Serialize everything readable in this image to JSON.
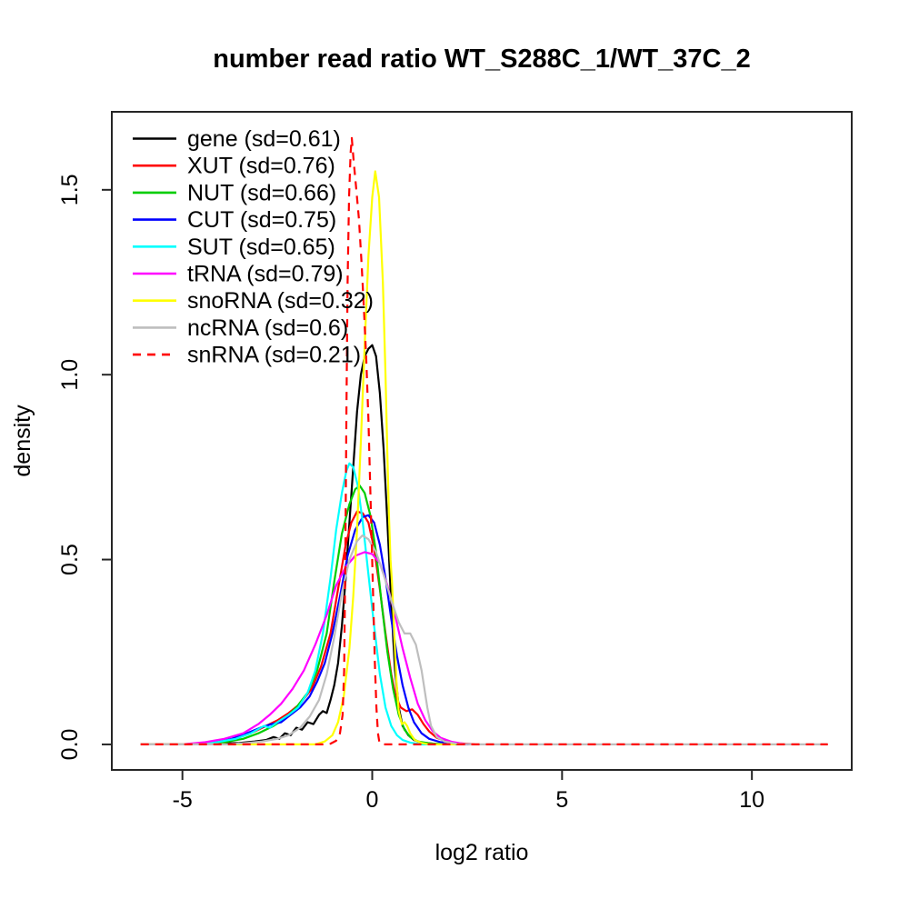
{
  "chart_data": {
    "type": "line",
    "title": "number read ratio WT_S288C_1/WT_37C_2",
    "xlabel": "log2 ratio",
    "ylabel": "density",
    "xlim": [
      -6.86,
      12.63
    ],
    "ylim": [
      -0.069,
      1.711
    ],
    "grid": false,
    "legend_position": "top-left",
    "axis_color": "#262626",
    "xticks": {
      "values": [
        -5,
        0,
        5,
        10
      ],
      "labels": [
        "-5",
        "0",
        "5",
        "10"
      ]
    },
    "yticks": {
      "values": [
        0,
        0.5,
        1,
        1.5
      ],
      "labels": [
        "0.0",
        "0.5",
        "1.0",
        "1.5"
      ]
    },
    "series": [
      {
        "name": "gene",
        "label": "gene (sd=0.61)",
        "sd": 0.61,
        "color": "#000000",
        "dashed": false,
        "points": [
          [
            -6.1,
            0
          ],
          [
            -4.6,
            0
          ],
          [
            -4.0,
            0.002
          ],
          [
            -3.5,
            0.004
          ],
          [
            -3.1,
            0.008
          ],
          [
            -2.8,
            0.012
          ],
          [
            -2.6,
            0.02
          ],
          [
            -2.45,
            0.015
          ],
          [
            -2.3,
            0.03
          ],
          [
            -2.15,
            0.025
          ],
          [
            -2.0,
            0.045
          ],
          [
            -1.85,
            0.04
          ],
          [
            -1.7,
            0.06
          ],
          [
            -1.55,
            0.055
          ],
          [
            -1.4,
            0.08
          ],
          [
            -1.3,
            0.09
          ],
          [
            -1.2,
            0.085
          ],
          [
            -1.1,
            0.12
          ],
          [
            -1.0,
            0.16
          ],
          [
            -0.9,
            0.22
          ],
          [
            -0.8,
            0.32
          ],
          [
            -0.7,
            0.45
          ],
          [
            -0.6,
            0.6
          ],
          [
            -0.5,
            0.75
          ],
          [
            -0.4,
            0.9
          ],
          [
            -0.3,
            1.0
          ],
          [
            -0.2,
            1.05
          ],
          [
            -0.1,
            1.07
          ],
          [
            0.0,
            1.08
          ],
          [
            0.1,
            1.05
          ],
          [
            0.2,
            0.95
          ],
          [
            0.3,
            0.8
          ],
          [
            0.4,
            0.6
          ],
          [
            0.5,
            0.38
          ],
          [
            0.6,
            0.2
          ],
          [
            0.7,
            0.1
          ],
          [
            0.8,
            0.05
          ],
          [
            0.95,
            0.025
          ],
          [
            1.1,
            0.012
          ],
          [
            1.3,
            0.005
          ],
          [
            1.6,
            0.002
          ],
          [
            2.0,
            0
          ],
          [
            2.6,
            0
          ]
        ]
      },
      {
        "name": "XUT",
        "label": "XUT (sd=0.76)",
        "sd": 0.76,
        "color": "#FF0000",
        "dashed": false,
        "points": [
          [
            -6.1,
            0
          ],
          [
            -5.0,
            0
          ],
          [
            -4.4,
            0.004
          ],
          [
            -3.9,
            0.01
          ],
          [
            -3.5,
            0.02
          ],
          [
            -3.1,
            0.035
          ],
          [
            -2.8,
            0.05
          ],
          [
            -2.5,
            0.065
          ],
          [
            -2.2,
            0.085
          ],
          [
            -1.9,
            0.11
          ],
          [
            -1.6,
            0.15
          ],
          [
            -1.35,
            0.21
          ],
          [
            -1.1,
            0.3
          ],
          [
            -0.9,
            0.42
          ],
          [
            -0.7,
            0.54
          ],
          [
            -0.55,
            0.6
          ],
          [
            -0.4,
            0.63
          ],
          [
            -0.25,
            0.625
          ],
          [
            -0.1,
            0.6
          ],
          [
            0.05,
            0.53
          ],
          [
            0.2,
            0.42
          ],
          [
            0.35,
            0.3
          ],
          [
            0.5,
            0.19
          ],
          [
            0.62,
            0.13
          ],
          [
            0.75,
            0.1
          ],
          [
            0.9,
            0.09
          ],
          [
            1.05,
            0.095
          ],
          [
            1.2,
            0.08
          ],
          [
            1.35,
            0.055
          ],
          [
            1.5,
            0.035
          ],
          [
            1.7,
            0.018
          ],
          [
            1.95,
            0.008
          ],
          [
            2.3,
            0.003
          ],
          [
            2.7,
            0
          ]
        ]
      },
      {
        "name": "NUT",
        "label": "NUT (sd=0.66)",
        "sd": 0.66,
        "color": "#00CD00",
        "dashed": false,
        "points": [
          [
            -6.1,
            0
          ],
          [
            -4.4,
            0
          ],
          [
            -3.9,
            0.006
          ],
          [
            -3.4,
            0.015
          ],
          [
            -3.0,
            0.03
          ],
          [
            -2.6,
            0.05
          ],
          [
            -2.3,
            0.07
          ],
          [
            -2.0,
            0.1
          ],
          [
            -1.7,
            0.14
          ],
          [
            -1.45,
            0.2
          ],
          [
            -1.2,
            0.3
          ],
          [
            -1.0,
            0.44
          ],
          [
            -0.8,
            0.57
          ],
          [
            -0.6,
            0.65
          ],
          [
            -0.45,
            0.69
          ],
          [
            -0.33,
            0.7
          ],
          [
            -0.2,
            0.68
          ],
          [
            -0.05,
            0.62
          ],
          [
            0.1,
            0.52
          ],
          [
            0.25,
            0.38
          ],
          [
            0.4,
            0.25
          ],
          [
            0.55,
            0.15
          ],
          [
            0.7,
            0.08
          ],
          [
            0.85,
            0.04
          ],
          [
            1.0,
            0.02
          ],
          [
            1.2,
            0.008
          ],
          [
            1.5,
            0.003
          ],
          [
            1.9,
            0
          ],
          [
            2.4,
            0
          ]
        ]
      },
      {
        "name": "CUT",
        "label": "CUT (sd=0.75)",
        "sd": 0.75,
        "color": "#0000FF",
        "dashed": false,
        "points": [
          [
            -6.1,
            0
          ],
          [
            -4.8,
            0
          ],
          [
            -4.2,
            0.005
          ],
          [
            -3.7,
            0.015
          ],
          [
            -3.3,
            0.03
          ],
          [
            -2.95,
            0.045
          ],
          [
            -2.65,
            0.055
          ],
          [
            -2.4,
            0.06
          ],
          [
            -2.15,
            0.08
          ],
          [
            -1.9,
            0.1
          ],
          [
            -1.65,
            0.13
          ],
          [
            -1.45,
            0.17
          ],
          [
            -1.25,
            0.22
          ],
          [
            -1.05,
            0.3
          ],
          [
            -0.85,
            0.4
          ],
          [
            -0.65,
            0.51
          ],
          [
            -0.45,
            0.58
          ],
          [
            -0.25,
            0.615
          ],
          [
            -0.1,
            0.62
          ],
          [
            0.05,
            0.6
          ],
          [
            0.2,
            0.54
          ],
          [
            0.35,
            0.45
          ],
          [
            0.5,
            0.34
          ],
          [
            0.65,
            0.24
          ],
          [
            0.8,
            0.16
          ],
          [
            0.95,
            0.1
          ],
          [
            1.1,
            0.06
          ],
          [
            1.3,
            0.03
          ],
          [
            1.5,
            0.015
          ],
          [
            1.8,
            0.006
          ],
          [
            2.2,
            0.002
          ],
          [
            2.6,
            0
          ]
        ]
      },
      {
        "name": "SUT",
        "label": "SUT (sd=0.65)",
        "sd": 0.65,
        "color": "#00FFFF",
        "dashed": false,
        "points": [
          [
            -6.1,
            0
          ],
          [
            -4.6,
            0
          ],
          [
            -4.1,
            0.006
          ],
          [
            -3.6,
            0.015
          ],
          [
            -3.2,
            0.03
          ],
          [
            -2.85,
            0.05
          ],
          [
            -2.7,
            0.045
          ],
          [
            -2.5,
            0.06
          ],
          [
            -2.2,
            0.08
          ],
          [
            -1.95,
            0.1
          ],
          [
            -1.7,
            0.14
          ],
          [
            -1.5,
            0.2
          ],
          [
            -1.3,
            0.3
          ],
          [
            -1.1,
            0.45
          ],
          [
            -0.95,
            0.58
          ],
          [
            -0.8,
            0.68
          ],
          [
            -0.68,
            0.74
          ],
          [
            -0.6,
            0.76
          ],
          [
            -0.5,
            0.75
          ],
          [
            -0.38,
            0.7
          ],
          [
            -0.25,
            0.6
          ],
          [
            -0.1,
            0.46
          ],
          [
            0.05,
            0.32
          ],
          [
            0.2,
            0.19
          ],
          [
            0.35,
            0.1
          ],
          [
            0.5,
            0.05
          ],
          [
            0.65,
            0.025
          ],
          [
            0.8,
            0.012
          ],
          [
            1.0,
            0.005
          ],
          [
            1.3,
            0
          ],
          [
            2.0,
            0
          ]
        ]
      },
      {
        "name": "tRNA",
        "label": "tRNA (sd=0.79)",
        "sd": 0.79,
        "color": "#FF00FF",
        "dashed": false,
        "points": [
          [
            -6.1,
            0
          ],
          [
            -5.0,
            0
          ],
          [
            -4.4,
            0.006
          ],
          [
            -3.9,
            0.015
          ],
          [
            -3.4,
            0.03
          ],
          [
            -3.0,
            0.055
          ],
          [
            -2.7,
            0.08
          ],
          [
            -2.4,
            0.11
          ],
          [
            -2.1,
            0.15
          ],
          [
            -1.8,
            0.2
          ],
          [
            -1.5,
            0.27
          ],
          [
            -1.2,
            0.35
          ],
          [
            -0.95,
            0.43
          ],
          [
            -0.7,
            0.48
          ],
          [
            -0.45,
            0.51
          ],
          [
            -0.2,
            0.52
          ],
          [
            0.0,
            0.515
          ],
          [
            0.2,
            0.49
          ],
          [
            0.4,
            0.43
          ],
          [
            0.6,
            0.35
          ],
          [
            0.8,
            0.26
          ],
          [
            1.0,
            0.18
          ],
          [
            1.2,
            0.11
          ],
          [
            1.4,
            0.065
          ],
          [
            1.6,
            0.035
          ],
          [
            1.8,
            0.018
          ],
          [
            2.1,
            0.007
          ],
          [
            2.5,
            0
          ]
        ]
      },
      {
        "name": "snoRNA",
        "label": "snoRNA (sd=0.32)",
        "sd": 0.32,
        "color": "#FFFF00",
        "dashed": false,
        "points": [
          [
            -6.1,
            0
          ],
          [
            -1.5,
            0
          ],
          [
            -1.25,
            0.008
          ],
          [
            -1.05,
            0.025
          ],
          [
            -0.9,
            0.06
          ],
          [
            -0.75,
            0.13
          ],
          [
            -0.6,
            0.26
          ],
          [
            -0.5,
            0.4
          ],
          [
            -0.4,
            0.58
          ],
          [
            -0.3,
            0.82
          ],
          [
            -0.2,
            1.08
          ],
          [
            -0.1,
            1.32
          ],
          [
            0.0,
            1.48
          ],
          [
            0.08,
            1.55
          ],
          [
            0.18,
            1.48
          ],
          [
            0.28,
            1.25
          ],
          [
            0.35,
            1.0
          ],
          [
            0.4,
            0.78
          ],
          [
            0.44,
            0.62
          ],
          [
            0.48,
            0.5
          ],
          [
            0.52,
            0.44
          ],
          [
            0.58,
            0.3
          ],
          [
            0.64,
            0.17
          ],
          [
            0.7,
            0.09
          ],
          [
            0.78,
            0.055
          ],
          [
            0.85,
            0.06
          ],
          [
            0.92,
            0.05
          ],
          [
            1.0,
            0.03
          ],
          [
            1.12,
            0.012
          ],
          [
            1.3,
            0.004
          ],
          [
            1.5,
            0
          ],
          [
            2.2,
            0
          ]
        ]
      },
      {
        "name": "ncRNA",
        "label": "ncRNA (sd=0.6)",
        "sd": 0.6,
        "color": "#BEBEBE",
        "dashed": false,
        "points": [
          [
            -6.1,
            0
          ],
          [
            -3.8,
            0
          ],
          [
            -3.3,
            0.004
          ],
          [
            -2.9,
            0.008
          ],
          [
            -2.5,
            0.015
          ],
          [
            -2.2,
            0.025
          ],
          [
            -1.9,
            0.045
          ],
          [
            -1.65,
            0.075
          ],
          [
            -1.4,
            0.12
          ],
          [
            -1.2,
            0.19
          ],
          [
            -1.0,
            0.29
          ],
          [
            -0.8,
            0.41
          ],
          [
            -0.6,
            0.5
          ],
          [
            -0.4,
            0.55
          ],
          [
            -0.26,
            0.565
          ],
          [
            -0.1,
            0.555
          ],
          [
            0.1,
            0.52
          ],
          [
            0.3,
            0.46
          ],
          [
            0.5,
            0.39
          ],
          [
            0.7,
            0.33
          ],
          [
            0.85,
            0.3
          ],
          [
            1.0,
            0.3
          ],
          [
            1.15,
            0.27
          ],
          [
            1.3,
            0.2
          ],
          [
            1.45,
            0.1
          ],
          [
            1.55,
            0.05
          ],
          [
            1.7,
            0.02
          ],
          [
            1.9,
            0.008
          ],
          [
            2.2,
            0.002
          ],
          [
            2.6,
            0
          ],
          [
            12.0,
            0
          ]
        ]
      },
      {
        "name": "snRNA",
        "label": "snRNA (sd=0.21)",
        "sd": 0.21,
        "color": "#FF0000",
        "dashed": true,
        "points": [
          [
            -6.1,
            0
          ],
          [
            -1.3,
            0
          ],
          [
            -1.1,
            0.002
          ],
          [
            -0.95,
            0.01
          ],
          [
            -0.85,
            0.03
          ],
          [
            -0.78,
            0.08
          ],
          [
            -0.74,
            0.2
          ],
          [
            -0.71,
            0.5
          ],
          [
            -0.68,
            0.9
          ],
          [
            -0.65,
            1.25
          ],
          [
            -0.61,
            1.48
          ],
          [
            -0.57,
            1.6
          ],
          [
            -0.54,
            1.64
          ],
          [
            -0.49,
            1.58
          ],
          [
            -0.42,
            1.5
          ],
          [
            -0.35,
            1.42
          ],
          [
            -0.28,
            1.3
          ],
          [
            -0.22,
            1.18
          ],
          [
            -0.16,
            1.05
          ],
          [
            -0.1,
            0.88
          ],
          [
            -0.04,
            0.65
          ],
          [
            0.02,
            0.42
          ],
          [
            0.07,
            0.22
          ],
          [
            0.11,
            0.1
          ],
          [
            0.15,
            0.03
          ],
          [
            0.19,
            0.005
          ],
          [
            0.25,
            0
          ],
          [
            12.0,
            0
          ]
        ]
      }
    ]
  }
}
